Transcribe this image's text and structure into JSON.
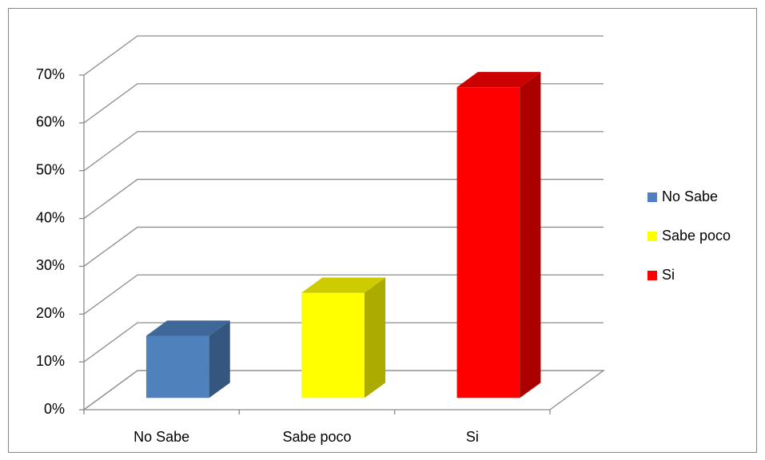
{
  "chart_data": {
    "type": "bar3d",
    "categories": [
      "No Sabe",
      "Sabe poco",
      "Si"
    ],
    "values": [
      13,
      22,
      65
    ],
    "colors": [
      "#4f81bd",
      "#ffff00",
      "#ff0000"
    ],
    "ylim": [
      0,
      70
    ],
    "yticks": [
      {
        "value": 0,
        "label": "0%"
      },
      {
        "value": 10,
        "label": "10%"
      },
      {
        "value": 20,
        "label": "20%"
      },
      {
        "value": 30,
        "label": "30%"
      },
      {
        "value": 40,
        "label": "40%"
      },
      {
        "value": 50,
        "label": "50%"
      },
      {
        "value": 60,
        "label": "60%"
      },
      {
        "value": 70,
        "label": "70%"
      }
    ],
    "grid": true,
    "legend": "right"
  }
}
